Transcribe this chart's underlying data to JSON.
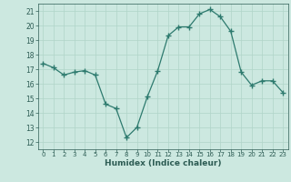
{
  "x": [
    0,
    1,
    2,
    3,
    4,
    5,
    6,
    7,
    8,
    9,
    10,
    11,
    12,
    13,
    14,
    15,
    16,
    17,
    18,
    19,
    20,
    21,
    22,
    23
  ],
  "y": [
    17.4,
    17.1,
    16.6,
    16.8,
    16.9,
    16.6,
    14.6,
    14.3,
    12.3,
    13.0,
    15.1,
    16.9,
    19.3,
    19.9,
    19.9,
    20.8,
    21.1,
    20.6,
    19.6,
    16.8,
    15.9,
    16.2,
    16.2,
    15.4
  ],
  "line_color": "#2d7a6e",
  "marker": "+",
  "marker_size": 4,
  "bg_color": "#cce8e0",
  "grid_color": "#b0d4c8",
  "xlabel": "Humidex (Indice chaleur)",
  "ylim": [
    11.5,
    21.5
  ],
  "xlim": [
    -0.5,
    23.5
  ],
  "yticks": [
    12,
    13,
    14,
    15,
    16,
    17,
    18,
    19,
    20,
    21
  ],
  "xticks": [
    0,
    1,
    2,
    3,
    4,
    5,
    6,
    7,
    8,
    9,
    10,
    11,
    12,
    13,
    14,
    15,
    16,
    17,
    18,
    19,
    20,
    21,
    22,
    23
  ],
  "tick_color": "#2d5c54",
  "xlabel_fontsize": 6.5,
  "ytick_fontsize": 5.5,
  "xtick_fontsize": 5.0
}
